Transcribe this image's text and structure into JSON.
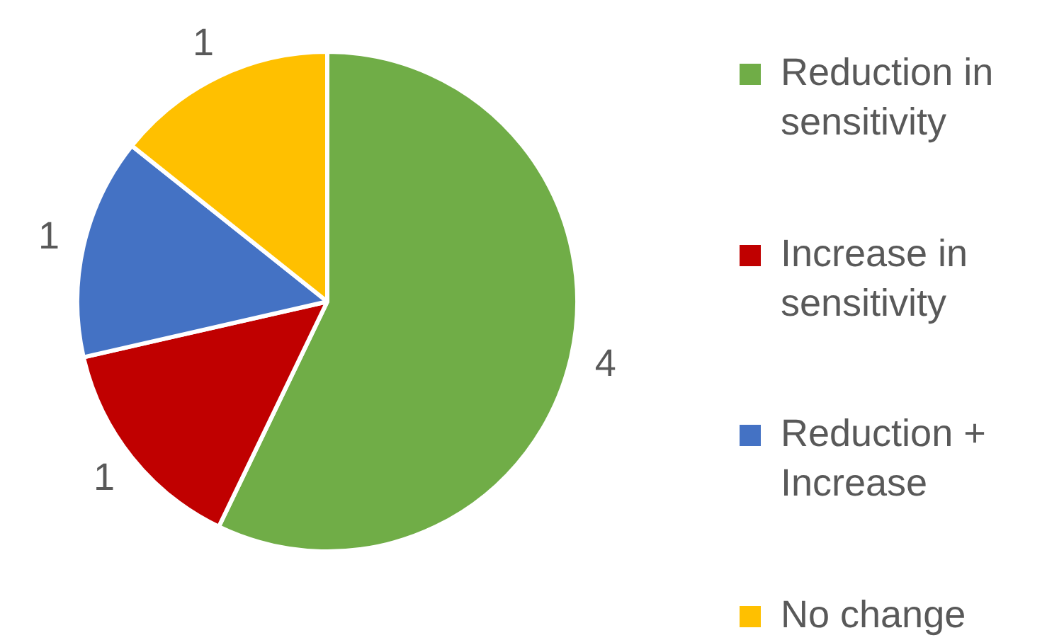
{
  "chart_data": {
    "type": "pie",
    "categories": [
      "Reduction in sensitivity",
      "Increase in sensitivity",
      "Reduction + Increase",
      "No change"
    ],
    "values": [
      4,
      1,
      1,
      1
    ],
    "colors": [
      "#70ad47",
      "#c00000",
      "#4472c4",
      "#ffc000"
    ],
    "data_labels": true,
    "legend": "right"
  }
}
